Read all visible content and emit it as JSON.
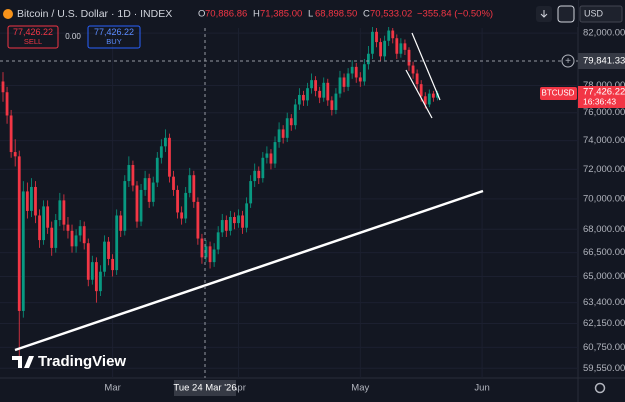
{
  "header": {
    "title": "Bitcoin / U.S. Dollar · 1D · INDEX",
    "ohlc": [
      {
        "key": "O",
        "value": "70,886.86"
      },
      {
        "key": "H",
        "value": "71,385.00"
      },
      {
        "key": "L",
        "value": "68,898.50"
      },
      {
        "key": "C",
        "value": "70,533.02"
      }
    ],
    "change": "−355.84 (−0.50%)",
    "sell": {
      "price": "77,426.22",
      "label": "SELL"
    },
    "spread": "0.00",
    "buy": {
      "price": "77,426.22",
      "label": "BUY"
    },
    "currency": "USD"
  },
  "logo": "TradingView",
  "chart_data": {
    "type": "candlestick",
    "log_scale": true,
    "grid": true,
    "up_color": "#089981",
    "down_color": "#f23645",
    "ylim": [
      59000,
      82400
    ],
    "yticks": [
      {
        "value": 82000,
        "label": "82,000.00"
      },
      {
        "value": 78000,
        "label": "78,000.00"
      },
      {
        "value": 76000,
        "label": "76,000.00"
      },
      {
        "value": 74000,
        "label": "74,000.00"
      },
      {
        "value": 72000,
        "label": "72,000.00"
      },
      {
        "value": 70000,
        "label": "70,000.00"
      },
      {
        "value": 68000,
        "label": "68,000.00"
      },
      {
        "value": 66500,
        "label": "66,500.00"
      },
      {
        "value": 65000,
        "label": "65,000.00"
      },
      {
        "value": 63400,
        "label": "63,400.00"
      },
      {
        "value": 62150,
        "label": "62,150.00"
      },
      {
        "value": 60750,
        "label": "60,750.00"
      },
      {
        "value": 59550,
        "label": "59,550.00"
      }
    ],
    "xticks": [
      {
        "value": 27,
        "label": "Mar"
      },
      {
        "value": 58,
        "label": "Apr"
      },
      {
        "value": 88,
        "label": "May"
      },
      {
        "value": 118,
        "label": "Jun"
      }
    ],
    "open": [
      78300,
      77500,
      75800,
      73200,
      72900,
      62900,
      70500,
      69200,
      70800,
      68900,
      67300,
      69500,
      68100,
      66800,
      68600,
      69900,
      68300,
      67900,
      66900,
      67600,
      68200,
      67100,
      64800,
      65900,
      64100,
      65300,
      67200,
      66100,
      65400,
      68900,
      67900,
      71200,
      72300,
      70900,
      68500,
      70600,
      71400,
      69800,
      71100,
      72800,
      73600,
      74200,
      71500,
      70600,
      69100,
      68700,
      70400,
      71600,
      69800,
      67400,
      66200,
      66900,
      65900,
      66700,
      67800,
      68600,
      67900,
      68800,
      68400,
      68900,
      68100,
      69700,
      71200,
      71900,
      71400,
      72800,
      73100,
      72400,
      73900,
      74800,
      74200,
      75600,
      75100,
      76600,
      77300,
      76900,
      77800,
      78400,
      77600,
      77100,
      78200,
      76900,
      76200,
      77400,
      78600,
      77900,
      78900,
      79400,
      78600,
      78300,
      79600,
      80400,
      82100,
      81300,
      80200,
      81400,
      82200,
      81600,
      80400,
      81200,
      80700,
      79500,
      78900,
      78100,
      77200,
      76600,
      77400,
      77100
    ],
    "high": [
      79000,
      77900,
      76200,
      74100,
      73300,
      71200,
      71100,
      71400,
      71200,
      69300,
      69900,
      69900,
      68500,
      69000,
      70400,
      70300,
      68800,
      68300,
      68000,
      68600,
      68500,
      67400,
      66300,
      66200,
      65700,
      67600,
      67500,
      66400,
      69300,
      69200,
      71600,
      72900,
      72600,
      71200,
      71000,
      71900,
      71700,
      71500,
      73200,
      74100,
      74800,
      74500,
      71900,
      70900,
      69500,
      70800,
      72100,
      71900,
      70100,
      67700,
      67300,
      67200,
      67100,
      68200,
      69000,
      68900,
      69200,
      69100,
      69300,
      69200,
      70100,
      71600,
      72400,
      72200,
      73200,
      73600,
      73400,
      74300,
      75300,
      75100,
      76000,
      75900,
      77000,
      77800,
      77600,
      78200,
      78900,
      78700,
      77900,
      78600,
      78500,
      77200,
      77800,
      79100,
      78900,
      79300,
      79900,
      79700,
      79000,
      80000,
      81000,
      82500,
      82400,
      81600,
      81800,
      82600,
      82400,
      81900,
      81600,
      81500,
      80900,
      79800,
      79200,
      78400,
      77500,
      77700,
      77600,
      77600
    ],
    "low": [
      76800,
      75200,
      72800,
      72200,
      60100,
      62500,
      68700,
      68800,
      68400,
      66800,
      67000,
      67700,
      66300,
      66500,
      68200,
      67900,
      67400,
      66500,
      66500,
      67200,
      66700,
      64400,
      64500,
      63400,
      63800,
      65000,
      65700,
      65000,
      65100,
      67500,
      67600,
      70800,
      70500,
      68100,
      68200,
      70200,
      69400,
      69500,
      70800,
      72400,
      73200,
      71100,
      70200,
      68700,
      68300,
      68400,
      70100,
      69400,
      67000,
      65800,
      65900,
      65500,
      65600,
      66400,
      67500,
      67500,
      67600,
      68000,
      68100,
      67700,
      67800,
      69400,
      70800,
      71000,
      71100,
      72400,
      72000,
      72100,
      73500,
      73800,
      73900,
      74700,
      74800,
      76200,
      76500,
      76500,
      77400,
      77200,
      76700,
      76800,
      76500,
      75800,
      75900,
      77100,
      77500,
      77600,
      78500,
      78200,
      77900,
      78000,
      79200,
      80000,
      80900,
      79800,
      79900,
      81000,
      81200,
      80000,
      80100,
      80300,
      79100,
      78500,
      77700,
      76800,
      76300,
      76400,
      76800,
      76900
    ],
    "close": [
      77500,
      75800,
      73200,
      72900,
      62900,
      70500,
      69200,
      70800,
      68900,
      67300,
      69500,
      68100,
      66800,
      68600,
      69900,
      68300,
      67900,
      66900,
      67600,
      68200,
      67100,
      64800,
      65900,
      64100,
      65300,
      67200,
      66100,
      65400,
      68900,
      67900,
      71200,
      72300,
      70900,
      68500,
      70600,
      71400,
      69800,
      71100,
      72800,
      73600,
      74200,
      71500,
      70600,
      69100,
      68700,
      70400,
      71600,
      69800,
      67400,
      66200,
      66900,
      65900,
      66700,
      67800,
      68600,
      67900,
      68800,
      68400,
      68900,
      68100,
      69700,
      71200,
      71900,
      71400,
      72800,
      73100,
      72400,
      73900,
      74800,
      74200,
      75600,
      75100,
      76600,
      77300,
      76900,
      77800,
      78400,
      77600,
      77100,
      78200,
      76900,
      76200,
      77400,
      78600,
      77900,
      78900,
      79400,
      78600,
      78300,
      79600,
      80400,
      82100,
      81300,
      80200,
      81400,
      82200,
      81600,
      80400,
      81200,
      80700,
      79500,
      78900,
      78100,
      77200,
      76600,
      77400,
      77100,
      77426.22
    ],
    "last_price": {
      "symbol": "BTCUSD",
      "price": "77,426.22",
      "countdown": "16:36:43"
    },
    "crosshair": {
      "price": "79,841.33",
      "date": "Tue 24 Mar '26"
    }
  }
}
